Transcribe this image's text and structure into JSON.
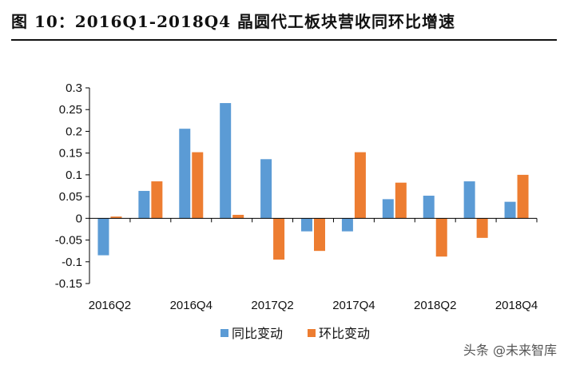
{
  "header": {
    "title": "图 10：2016Q1-2018Q4 晶圆代工板块营收同环比增速"
  },
  "watermark": "头条 @未来智库",
  "colors": {
    "yoy": "#5B9BD5",
    "qoq": "#ED7D31",
    "axis": "#000000"
  },
  "chart_data": {
    "type": "bar",
    "title": "",
    "xlabel": "",
    "ylabel": "",
    "ylim": [
      -0.15,
      0.3
    ],
    "yticks": [
      -0.15,
      -0.1,
      -0.05,
      0,
      0.05,
      0.1,
      0.15,
      0.2,
      0.25,
      0.3
    ],
    "ytick_labels": [
      "-0.15",
      "-0.1",
      "-0.05",
      "0",
      "0.05",
      "0.1",
      "0.15",
      "0.2",
      "0.25",
      "0.3"
    ],
    "categories": [
      "2016Q2",
      "2016Q3",
      "2016Q4",
      "2017Q1",
      "2017Q2",
      "2017Q3",
      "2017Q4",
      "2018Q1",
      "2018Q2",
      "2018Q3",
      "2018Q4"
    ],
    "xtick_labels_shown": [
      "2016Q2",
      "",
      "2016Q4",
      "",
      "2017Q2",
      "",
      "2017Q4",
      "",
      "2018Q2",
      "",
      "2018Q4"
    ],
    "series": [
      {
        "name": "同比变动",
        "values": [
          -0.085,
          0.063,
          0.206,
          0.265,
          0.136,
          -0.03,
          -0.03,
          0.044,
          0.052,
          0.085,
          0.038
        ]
      },
      {
        "name": "环比变动",
        "values": [
          0.004,
          0.085,
          0.152,
          0.008,
          -0.095,
          -0.075,
          0.152,
          0.082,
          -0.088,
          -0.045,
          0.1
        ]
      }
    ],
    "grid": false,
    "legend_position": "bottom-center"
  }
}
